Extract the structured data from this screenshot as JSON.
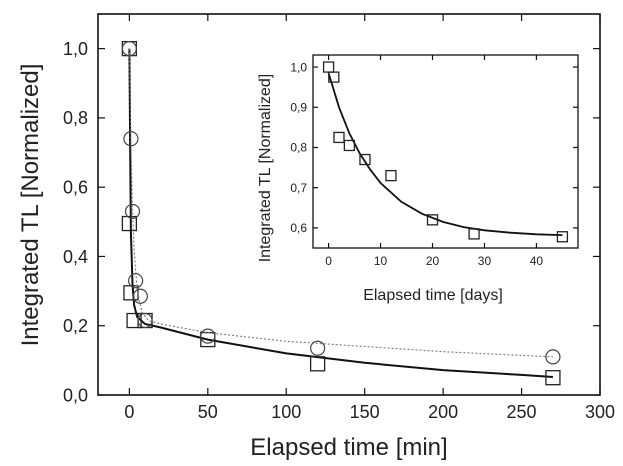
{
  "chart_data": [
    {
      "type": "scatter",
      "xlabel": "Elapsed time [min]",
      "ylabel": "Integrated TL [Normalized]",
      "xlim": [
        -20,
        300
      ],
      "ylim": [
        0,
        1.1
      ],
      "xticks": [
        0,
        50,
        100,
        150,
        200,
        250,
        300
      ],
      "xtick_labels": [
        "0",
        "50",
        "100",
        "150",
        "200",
        "250",
        "300"
      ],
      "yticks": [
        0,
        0.2,
        0.4,
        0.6,
        0.8,
        1.0
      ],
      "ytick_labels": [
        "0,0",
        "0,2",
        "0,4",
        "0,6",
        "0,8",
        "1,0"
      ],
      "grid": false,
      "series": [
        {
          "marker": "square",
          "points": [
            [
              0,
              1.0
            ],
            [
              0,
              0.495
            ],
            [
              1,
              0.295
            ],
            [
              3,
              0.215
            ],
            [
              10,
              0.215
            ],
            [
              50,
              0.16
            ],
            [
              120,
              0.09
            ],
            [
              270,
              0.05
            ]
          ],
          "fit": [
            [
              0,
              1.0
            ],
            [
              0.5,
              0.7
            ],
            [
              1,
              0.47
            ],
            [
              2,
              0.32
            ],
            [
              3,
              0.26
            ],
            [
              5,
              0.225
            ],
            [
              10,
              0.205
            ],
            [
              20,
              0.195
            ],
            [
              50,
              0.16
            ],
            [
              100,
              0.12
            ],
            [
              150,
              0.093
            ],
            [
              200,
              0.072
            ],
            [
              250,
              0.058
            ],
            [
              270,
              0.052
            ]
          ],
          "fit_style": "solid"
        },
        {
          "marker": "circle",
          "points": [
            [
              0,
              1.0
            ],
            [
              1,
              0.74
            ],
            [
              2,
              0.53
            ],
            [
              4,
              0.33
            ],
            [
              7,
              0.285
            ],
            [
              10,
              0.215
            ],
            [
              50,
              0.17
            ],
            [
              120,
              0.135
            ],
            [
              270,
              0.11
            ]
          ],
          "fit": [
            [
              0,
              1.0
            ],
            [
              1,
              0.73
            ],
            [
              2,
              0.54
            ],
            [
              3,
              0.42
            ],
            [
              5,
              0.3
            ],
            [
              8,
              0.24
            ],
            [
              12,
              0.215
            ],
            [
              20,
              0.205
            ],
            [
              50,
              0.18
            ],
            [
              100,
              0.155
            ],
            [
              150,
              0.14
            ],
            [
              200,
              0.125
            ],
            [
              270,
              0.11
            ]
          ],
          "fit_style": "dotted"
        }
      ]
    },
    {
      "type": "scatter",
      "xlabel": "Elapsed time [days]",
      "ylabel": "Integrated TL [Normalized]",
      "xlim": [
        -3,
        48
      ],
      "ylim": [
        0.55,
        1.03
      ],
      "xticks": [
        0,
        10,
        20,
        30,
        40
      ],
      "xtick_labels": [
        "0",
        "10",
        "20",
        "30",
        "40"
      ],
      "yticks": [
        0.6,
        0.7,
        0.8,
        0.9,
        1.0
      ],
      "ytick_labels": [
        "0,6",
        "0,7",
        "0,8",
        "0,9",
        "1,0"
      ],
      "grid": false,
      "series": [
        {
          "marker": "square",
          "points": [
            [
              0,
              1.0
            ],
            [
              1,
              0.975
            ],
            [
              2,
              0.825
            ],
            [
              4,
              0.805
            ],
            [
              7,
              0.77
            ],
            [
              12,
              0.73
            ],
            [
              20,
              0.62
            ],
            [
              28,
              0.585
            ],
            [
              45,
              0.578
            ]
          ],
          "fit": [
            [
              0,
              0.985
            ],
            [
              2,
              0.9
            ],
            [
              4,
              0.835
            ],
            [
              6,
              0.785
            ],
            [
              8,
              0.745
            ],
            [
              10,
              0.712
            ],
            [
              14,
              0.665
            ],
            [
              18,
              0.635
            ],
            [
              22,
              0.615
            ],
            [
              26,
              0.602
            ],
            [
              30,
              0.594
            ],
            [
              35,
              0.588
            ],
            [
              40,
              0.584
            ],
            [
              45,
              0.582
            ]
          ],
          "fit_style": "solid"
        }
      ]
    }
  ]
}
